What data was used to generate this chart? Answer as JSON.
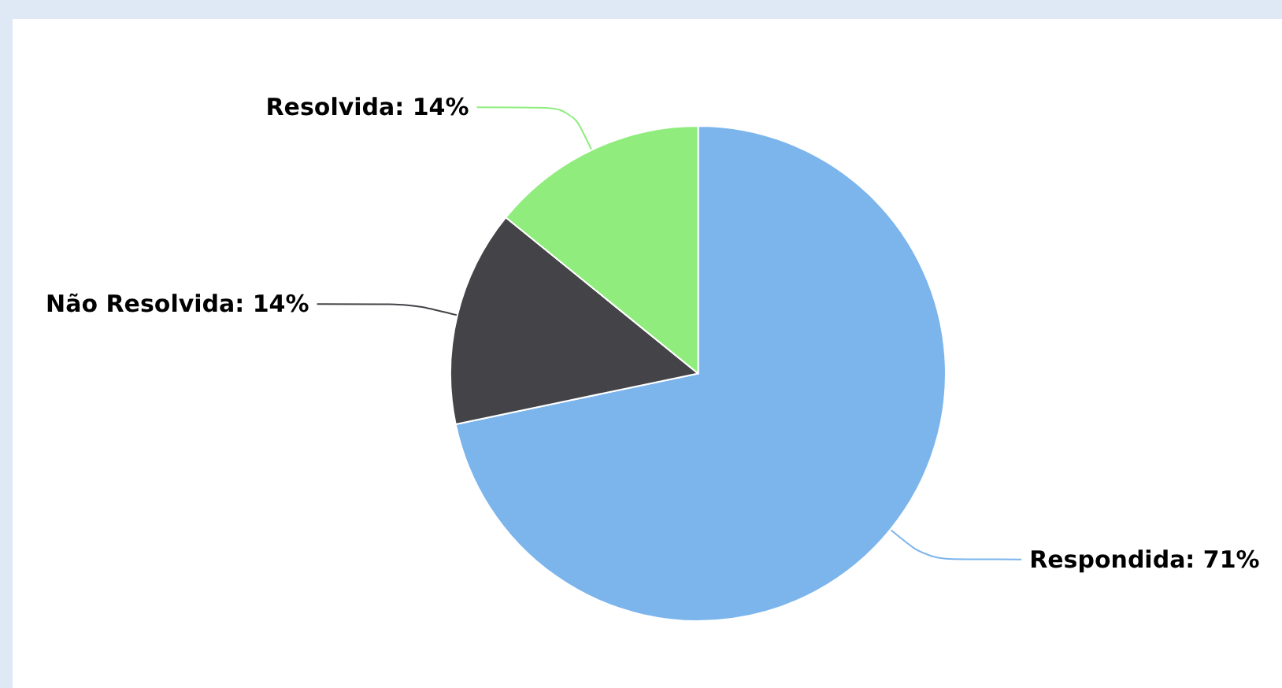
{
  "chart_data": {
    "type": "pie",
    "categories": [
      "Respondida",
      "Não Resolvida",
      "Resolvida"
    ],
    "values": [
      71,
      14,
      14
    ],
    "colors": [
      "#7cb5ec",
      "#434348",
      "#90ed7d"
    ],
    "value_labels": [
      "71%",
      "14%",
      "14%"
    ]
  }
}
